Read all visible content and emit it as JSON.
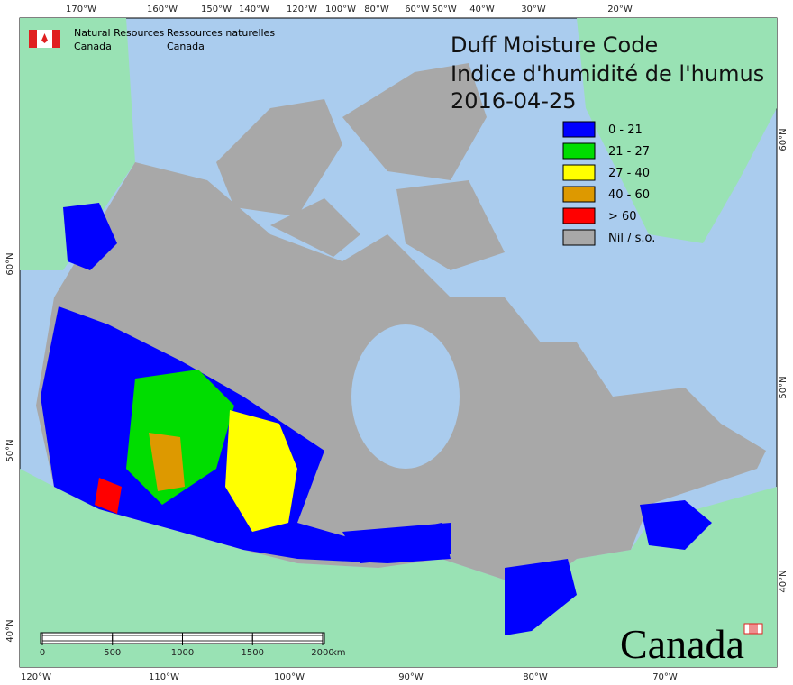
{
  "header": {
    "en": [
      "Natural Resources",
      "Canada"
    ],
    "fr": [
      "Ressources naturelles",
      "Canada"
    ]
  },
  "title": [
    "Duff Moisture Code",
    "Indice d'humidité de l'humus",
    "2016-04-25"
  ],
  "legend": [
    {
      "label": "0 - 21",
      "color": "#0000ff"
    },
    {
      "label": "21 - 27",
      "color": "#00dd00"
    },
    {
      "label": "27 - 40",
      "color": "#ffff00"
    },
    {
      "label": "40 - 60",
      "color": "#dd9900"
    },
    {
      "label": "> 60",
      "color": "#ff0000"
    },
    {
      "label": "Nil / s.o.",
      "color": "#a8a8a8"
    }
  ],
  "top_labels": [
    "170°W",
    "160°W",
    "150°W",
    "140°W",
    "120°W",
    "100°W",
    "80°W",
    "60°W",
    "50°W",
    "40°W",
    "30°W",
    "20°W"
  ],
  "bottom_labels": [
    "120°W",
    "110°W",
    "100°W",
    "90°W",
    "80°W",
    "70°W"
  ],
  "left_labels": [
    "60°N",
    "50°N",
    "40°N"
  ],
  "right_labels": [
    "60°N",
    "50°N",
    "40°N"
  ],
  "scale_bar": {
    "ticks": [
      0,
      500,
      1000,
      1500,
      2000
    ],
    "unit": "km"
  },
  "wordmark": "Canada"
}
